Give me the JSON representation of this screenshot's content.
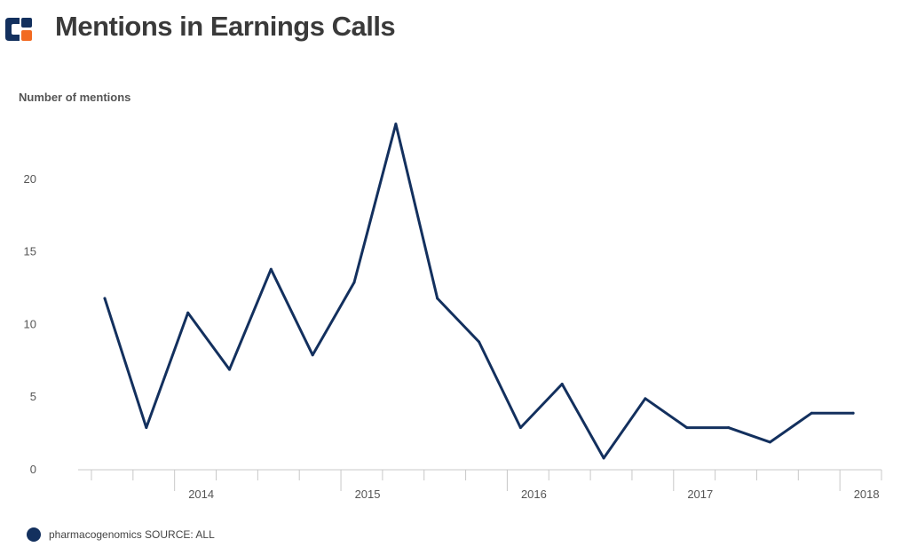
{
  "header": {
    "title": "Mentions in Earnings Calls",
    "logo_icon": "company-logo-icon"
  },
  "colors": {
    "line": "#13305e",
    "logo_blue": "#13305e",
    "logo_orange": "#f26a21",
    "axis": "#c8c8c8"
  },
  "chart_data": {
    "type": "line",
    "title": "Mentions in Earnings Calls",
    "ylabel": "Number of mentions",
    "xlabel": "",
    "ylim": [
      0,
      25
    ],
    "yticks": [
      0,
      5,
      10,
      15,
      20
    ],
    "xlim": [
      2013.42,
      2018.25
    ],
    "xticks": [
      2014,
      2015,
      2016,
      2017,
      2018
    ],
    "x_tick_labels": [
      "2014",
      "2015",
      "2016",
      "2017",
      "2018"
    ],
    "grid": false,
    "legend_position": "bottom-left",
    "series": [
      {
        "name": "pharmacogenomics SOURCE: ALL",
        "x": [
          2013.58,
          2013.83,
          2014.08,
          2014.33,
          2014.58,
          2014.83,
          2015.08,
          2015.33,
          2015.58,
          2015.83,
          2016.08,
          2016.33,
          2016.58,
          2016.83,
          2017.08,
          2017.33,
          2017.58,
          2017.83,
          2018.08
        ],
        "values": [
          11.8,
          2.9,
          10.8,
          6.9,
          13.8,
          7.9,
          12.9,
          23.8,
          11.8,
          8.8,
          2.9,
          5.9,
          0.8,
          4.9,
          2.9,
          2.9,
          1.9,
          3.9,
          3.9
        ]
      }
    ]
  }
}
